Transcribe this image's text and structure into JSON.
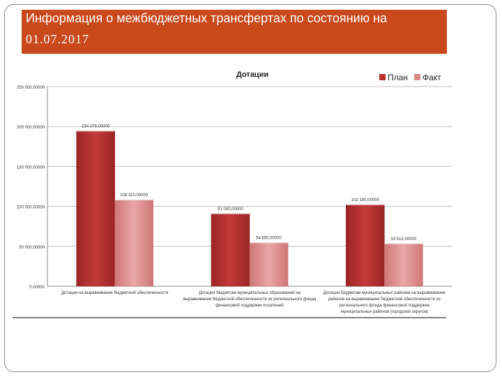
{
  "slide": {
    "title_line1": "Информация о межбюджетных трансфертах по состоянию на",
    "title_line2": "01.07.2017"
  },
  "colors": {
    "title_bar": "#c9491c",
    "plan": "#b83030",
    "fact": "#de8a8a",
    "gridline": "#bfbfbf"
  },
  "chart_data": {
    "type": "bar",
    "title": "Дотации",
    "categories": [
      [
        "Дотации на выравнивание бюджетной обеспеченности"
      ],
      [
        "Дотация бюджетам муниципальных образований на",
        "выравнивание бюджетной обеспеченности из регионального фонда",
        "финансовой поддержки поселений"
      ],
      [
        "Дотация бюджетам муниципальных районов на выравнивание",
        "районов на выравнивание бюджетной обеспеченности из",
        "регионального фонда финансовой поддержки",
        "муниципальных районов (городских округов)"
      ]
    ],
    "series": [
      {
        "name": "План",
        "values": [
          194479,
          91000,
          102180
        ]
      },
      {
        "name": "Факт",
        "values": [
          108310,
          54650,
          53515
        ]
      }
    ],
    "data_labels": [
      [
        "194 479,00000",
        "91 000,00000",
        "102 180,00000"
      ],
      [
        "108 310,00000",
        "54 650,00000",
        "53 515,00000"
      ]
    ],
    "ylim": [
      0,
      250000
    ],
    "yticks": [
      0,
      50000,
      100000,
      150000,
      200000,
      250000
    ],
    "ytick_labels": [
      "0,00000",
      "50 000,00000",
      "100 000,00000",
      "150 000,00000",
      "200 000,00000",
      "250 000,00000"
    ],
    "grid": true,
    "legend_position": "top-right"
  }
}
